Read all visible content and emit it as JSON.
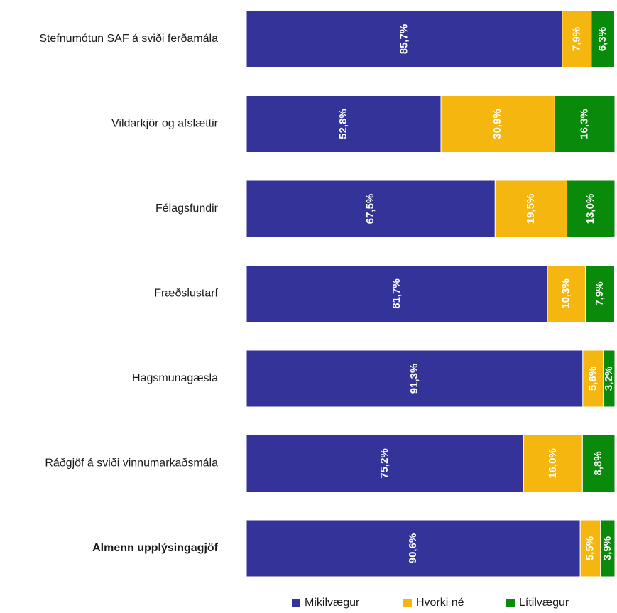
{
  "chart_data": {
    "type": "bar",
    "orientation": "horizontal",
    "stacked": true,
    "categories": [
      "Stefnumótun SAF á sviði ferðamála",
      "Vildarkjör og afslættir",
      "Félagsfundir",
      "Fræðslustarf",
      "Hagsmunagæsla",
      "Ráðgjöf á sviði vinnumarkaðsmála",
      "Almenn upplýsingagjöf"
    ],
    "bold_category": "Almenn upplýsingagjöf",
    "series": [
      {
        "name": "Mikilvægur",
        "color": "#333399",
        "values": [
          85.7,
          52.8,
          67.5,
          81.7,
          91.3,
          75.2,
          90.6
        ],
        "labels": [
          "85,7%",
          "52,8%",
          "67,5%",
          "81,7%",
          "91,3%",
          "75,2%",
          "90,6%"
        ]
      },
      {
        "name": "Hvorki né",
        "color": "#F5B70F",
        "values": [
          7.9,
          30.9,
          19.5,
          10.3,
          5.6,
          16.0,
          5.5
        ],
        "labels": [
          "7,9%",
          "30,9%",
          "19,5%",
          "10,3%",
          "5,6%",
          "16,0%",
          "5,5%"
        ]
      },
      {
        "name": "Lítilvægur",
        "color": "#0A8A0A",
        "values": [
          6.3,
          16.3,
          13.0,
          7.9,
          3.2,
          8.8,
          3.9
        ],
        "labels": [
          "6,3%",
          "16,3%",
          "13,0%",
          "7,9%",
          "3,2%",
          "8,8%",
          "3,9%"
        ]
      }
    ],
    "xlim": [
      0,
      100
    ],
    "grid": false,
    "legend_position": "bottom",
    "data_label_color": "#ffffff"
  }
}
